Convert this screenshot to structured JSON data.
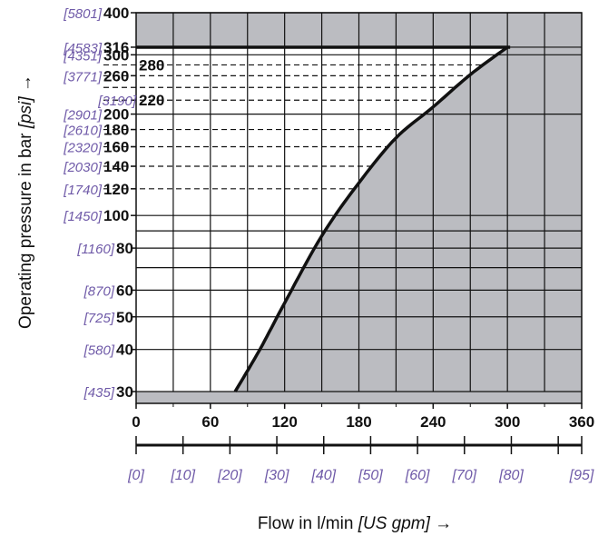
{
  "chart_data": {
    "type": "area",
    "colors": {
      "shade": "#bbbcc1",
      "psi_text": "#6f5aa8",
      "line": "#111111"
    },
    "y_axis": {
      "scale": "log",
      "range": [
        30,
        400
      ],
      "title_main": "Operating pressure in bar",
      "title_unit": "[psi]",
      "title_arrow": "→",
      "ticks": [
        {
          "bar": 400,
          "label": "400",
          "psi": "[5801]"
        },
        {
          "bar": 316,
          "label": "316",
          "psi": "[4583]"
        },
        {
          "bar": 300,
          "label": "300",
          "psi": "[4351]"
        },
        {
          "bar": 260,
          "label": "260",
          "psi": "[3771]"
        },
        {
          "bar": 220,
          "label": "",
          "psi": "[3190]"
        },
        {
          "bar": 200,
          "label": "200",
          "psi": "[2901]"
        },
        {
          "bar": 180,
          "label": "180",
          "psi": "[2610]"
        },
        {
          "bar": 160,
          "label": "160",
          "psi": "[2320]"
        },
        {
          "bar": 140,
          "label": "140",
          "psi": "[2030]"
        },
        {
          "bar": 120,
          "label": "120",
          "psi": "[1740]"
        },
        {
          "bar": 100,
          "label": "100",
          "psi": "[1450]"
        },
        {
          "bar": 80,
          "label": "80",
          "psi": "[1160]"
        },
        {
          "bar": 60,
          "label": "60",
          "psi": "[870]"
        },
        {
          "bar": 50,
          "label": "50",
          "psi": "[725]"
        },
        {
          "bar": 40,
          "label": "40",
          "psi": "[580]"
        },
        {
          "bar": 30,
          "label": "30",
          "psi": "[435]"
        }
      ],
      "grid_solid": [
        400,
        316,
        300,
        200,
        100,
        90,
        80,
        70,
        60,
        50,
        40,
        30
      ],
      "grid_dashed": [
        280,
        260,
        240,
        220,
        180,
        160,
        140,
        120
      ],
      "inner_labels": [
        {
          "bar": 280,
          "label": "280"
        },
        {
          "bar": 220,
          "label": "220"
        }
      ]
    },
    "x_axis": {
      "range": [
        0,
        360
      ],
      "title_main": "Flow in l/min",
      "title_unit": "[US gpm]",
      "title_arrow": "→",
      "ticks": [
        {
          "value": 0,
          "label": "0"
        },
        {
          "value": 60,
          "label": "60"
        },
        {
          "value": 120,
          "label": "120"
        },
        {
          "value": 180,
          "label": "180"
        },
        {
          "value": 240,
          "label": "240"
        },
        {
          "value": 300,
          "label": "300"
        },
        {
          "value": 360,
          "label": "360"
        }
      ],
      "grid": [
        30,
        60,
        90,
        120,
        150,
        180,
        210,
        240,
        270,
        300,
        330
      ]
    },
    "gpm_axis": {
      "ticks": [
        {
          "gpm": 0,
          "label": "[0]"
        },
        {
          "gpm": 10,
          "label": "[10]"
        },
        {
          "gpm": 20,
          "label": "[20]"
        },
        {
          "gpm": 30,
          "label": "[30]"
        },
        {
          "gpm": 40,
          "label": "[40]"
        },
        {
          "gpm": 50,
          "label": "[50]"
        },
        {
          "gpm": 60,
          "label": "[60]"
        },
        {
          "gpm": 70,
          "label": "[70]"
        },
        {
          "gpm": 80,
          "label": "[80]"
        },
        {
          "gpm": 95,
          "label": "[95]"
        }
      ],
      "minor_ticks": [
        90
      ]
    },
    "boundary_curve": {
      "points": [
        {
          "flow": 80,
          "bar": 30
        },
        {
          "flow": 100,
          "bar": 40
        },
        {
          "flow": 120,
          "bar": 55
        },
        {
          "flow": 150,
          "bar": 87
        },
        {
          "flow": 180,
          "bar": 125
        },
        {
          "flow": 210,
          "bar": 170
        },
        {
          "flow": 240,
          "bar": 210
        },
        {
          "flow": 270,
          "bar": 262
        },
        {
          "flow": 300,
          "bar": 316
        }
      ]
    },
    "max_pressure_bar": 316
  }
}
